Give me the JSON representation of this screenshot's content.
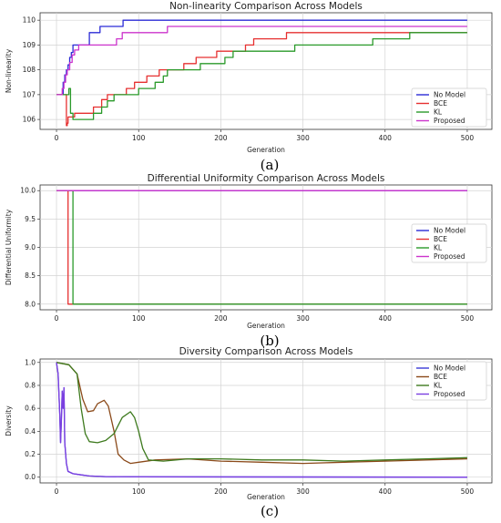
{
  "chart_data": [
    {
      "type": "line",
      "caption": "(a)",
      "title": "Non-linearity Comparison Across Models",
      "xlabel": "Generation",
      "ylabel": "Non-linearity",
      "xlim": [
        -20,
        530
      ],
      "ylim": [
        105.6,
        110.3
      ],
      "xticks": [
        0,
        100,
        200,
        300,
        400,
        500
      ],
      "yticks": [
        106,
        107,
        108,
        109,
        110
      ],
      "ytick_labels": [
        "106",
        "107",
        "108",
        "109",
        "110"
      ],
      "grid": true,
      "legend_position": "lower-right",
      "series": [
        {
          "name": "No Model",
          "color": "#2b2bd6",
          "step": true,
          "points": [
            [
              0,
              107
            ],
            [
              6,
              107
            ],
            [
              8,
              107.5
            ],
            [
              10,
              107.8
            ],
            [
              12,
              108
            ],
            [
              14,
              108.2
            ],
            [
              16,
              108.5
            ],
            [
              18,
              108.7
            ],
            [
              20,
              109
            ],
            [
              40,
              109.5
            ],
            [
              52,
              109.5
            ],
            [
              53,
              109.75
            ],
            [
              80,
              109.75
            ],
            [
              81,
              110
            ],
            [
              100,
              110
            ],
            [
              500,
              110
            ]
          ]
        },
        {
          "name": "BCE",
          "color": "#e63030",
          "step": true,
          "points": [
            [
              0,
              107
            ],
            [
              10,
              107
            ],
            [
              12,
              105.75
            ],
            [
              13,
              105.85
            ],
            [
              14,
              106.1
            ],
            [
              22,
              106.25
            ],
            [
              45,
              106.5
            ],
            [
              55,
              106.8
            ],
            [
              62,
              107
            ],
            [
              85,
              107.25
            ],
            [
              95,
              107.5
            ],
            [
              110,
              107.75
            ],
            [
              125,
              108
            ],
            [
              155,
              108.25
            ],
            [
              170,
              108.5
            ],
            [
              195,
              108.75
            ],
            [
              230,
              109
            ],
            [
              240,
              109.25
            ],
            [
              280,
              109.5
            ],
            [
              500,
              109.5
            ]
          ]
        },
        {
          "name": "KL",
          "color": "#2a9a2a",
          "step": true,
          "points": [
            [
              0,
              107
            ],
            [
              14,
              107
            ],
            [
              15,
              107.25
            ],
            [
              17,
              106.25
            ],
            [
              20,
              106
            ],
            [
              45,
              106.25
            ],
            [
              55,
              106.5
            ],
            [
              62,
              106.75
            ],
            [
              70,
              107
            ],
            [
              100,
              107.25
            ],
            [
              120,
              107.5
            ],
            [
              130,
              107.75
            ],
            [
              135,
              108
            ],
            [
              160,
              108
            ],
            [
              175,
              108.25
            ],
            [
              205,
              108.5
            ],
            [
              215,
              108.75
            ],
            [
              290,
              109
            ],
            [
              385,
              109.25
            ],
            [
              430,
              109.5
            ],
            [
              500,
              109.5
            ]
          ]
        },
        {
          "name": "Proposed",
          "color": "#cc33cc",
          "step": true,
          "points": [
            [
              0,
              107
            ],
            [
              5,
              107
            ],
            [
              7,
              107.25
            ],
            [
              9,
              107.5
            ],
            [
              11,
              107.8
            ],
            [
              13,
              108
            ],
            [
              16,
              108.3
            ],
            [
              19,
              108.6
            ],
            [
              22,
              108.8
            ],
            [
              27,
              109
            ],
            [
              70,
              109
            ],
            [
              73,
              109.25
            ],
            [
              80,
              109.5
            ],
            [
              135,
              109.75
            ],
            [
              500,
              109.75
            ]
          ]
        }
      ]
    },
    {
      "type": "line",
      "caption": "(b)",
      "title": "Differential Uniformity Comparison Across Models",
      "xlabel": "Generation",
      "ylabel": "Differential Uniformity",
      "xlim": [
        -20,
        530
      ],
      "ylim": [
        7.9,
        10.1
      ],
      "xticks": [
        0,
        100,
        200,
        300,
        400,
        500
      ],
      "yticks": [
        8.0,
        8.5,
        9.0,
        9.5,
        10.0
      ],
      "ytick_labels": [
        "8.0",
        "8.5",
        "9.0",
        "9.5",
        "10.0"
      ],
      "grid": true,
      "legend_position": "center-right",
      "series": [
        {
          "name": "No Model",
          "color": "#2b2bd6",
          "step": true,
          "points": [
            [
              0,
              10
            ],
            [
              500,
              10
            ]
          ]
        },
        {
          "name": "BCE",
          "color": "#e63030",
          "step": true,
          "points": [
            [
              0,
              10
            ],
            [
              13,
              10
            ],
            [
              14,
              8
            ],
            [
              500,
              8
            ]
          ]
        },
        {
          "name": "KL",
          "color": "#2a9a2a",
          "step": true,
          "points": [
            [
              0,
              10
            ],
            [
              19,
              10
            ],
            [
              20,
              8
            ],
            [
              500,
              8
            ]
          ]
        },
        {
          "name": "Proposed",
          "color": "#cc33cc",
          "step": true,
          "points": [
            [
              0,
              10
            ],
            [
              500,
              10
            ]
          ]
        }
      ]
    },
    {
      "type": "line",
      "caption": "(c)",
      "title": "Diversity Comparison Across Models",
      "xlabel": "Generation",
      "ylabel": "Diversity",
      "xlim": [
        -20,
        530
      ],
      "ylim": [
        -0.05,
        1.03
      ],
      "xticks": [
        0,
        100,
        200,
        300,
        400,
        500
      ],
      "yticks": [
        0.0,
        0.2,
        0.4,
        0.6,
        0.8,
        1.0
      ],
      "ytick_labels": [
        "0.0",
        "0.2",
        "0.4",
        "0.6",
        "0.8",
        "1.0"
      ],
      "grid": true,
      "legend_position": "top-right",
      "series": [
        {
          "name": "No Model",
          "color": "#3a3ad6",
          "step": false,
          "points": [
            [
              0,
              1
            ],
            [
              2,
              0.9
            ],
            [
              4,
              0.55
            ],
            [
              5,
              0.3
            ],
            [
              6,
              0.5
            ],
            [
              7,
              0.75
            ],
            [
              8,
              0.6
            ],
            [
              9,
              0.78
            ],
            [
              10,
              0.3
            ],
            [
              12,
              0.12
            ],
            [
              14,
              0.05
            ],
            [
              20,
              0.03
            ],
            [
              30,
              0.02
            ],
            [
              40,
              0.01
            ],
            [
              60,
              0.005
            ],
            [
              100,
              0.003
            ],
            [
              500,
              0.0
            ]
          ]
        },
        {
          "name": "BCE",
          "color": "#8b4a1a",
          "step": false,
          "points": [
            [
              0,
              1
            ],
            [
              15,
              0.98
            ],
            [
              25,
              0.9
            ],
            [
              32,
              0.68
            ],
            [
              38,
              0.57
            ],
            [
              45,
              0.58
            ],
            [
              50,
              0.64
            ],
            [
              58,
              0.67
            ],
            [
              63,
              0.62
            ],
            [
              70,
              0.4
            ],
            [
              75,
              0.2
            ],
            [
              82,
              0.15
            ],
            [
              90,
              0.12
            ],
            [
              100,
              0.13
            ],
            [
              120,
              0.15
            ],
            [
              160,
              0.16
            ],
            [
              200,
              0.14
            ],
            [
              250,
              0.13
            ],
            [
              300,
              0.12
            ],
            [
              350,
              0.13
            ],
            [
              400,
              0.14
            ],
            [
              450,
              0.15
            ],
            [
              500,
              0.16
            ]
          ]
        },
        {
          "name": "KL",
          "color": "#3e7a1e",
          "step": false,
          "points": [
            [
              0,
              1
            ],
            [
              15,
              0.98
            ],
            [
              25,
              0.9
            ],
            [
              30,
              0.6
            ],
            [
              35,
              0.38
            ],
            [
              40,
              0.31
            ],
            [
              50,
              0.3
            ],
            [
              60,
              0.32
            ],
            [
              70,
              0.38
            ],
            [
              80,
              0.52
            ],
            [
              90,
              0.57
            ],
            [
              95,
              0.52
            ],
            [
              100,
              0.4
            ],
            [
              105,
              0.25
            ],
            [
              112,
              0.15
            ],
            [
              130,
              0.14
            ],
            [
              160,
              0.16
            ],
            [
              200,
              0.16
            ],
            [
              250,
              0.15
            ],
            [
              300,
              0.15
            ],
            [
              350,
              0.14
            ],
            [
              400,
              0.15
            ],
            [
              450,
              0.16
            ],
            [
              500,
              0.17
            ]
          ]
        },
        {
          "name": "Proposed",
          "color": "#7b3fe0",
          "step": false,
          "points": [
            [
              0,
              1
            ],
            [
              2,
              0.9
            ],
            [
              4,
              0.55
            ],
            [
              5,
              0.3
            ],
            [
              6,
              0.5
            ],
            [
              7,
              0.75
            ],
            [
              8,
              0.6
            ],
            [
              9,
              0.78
            ],
            [
              10,
              0.3
            ],
            [
              12,
              0.12
            ],
            [
              14,
              0.05
            ],
            [
              20,
              0.03
            ],
            [
              30,
              0.02
            ],
            [
              40,
              0.01
            ],
            [
              60,
              0.005
            ],
            [
              100,
              0.003
            ],
            [
              500,
              0.0
            ]
          ]
        }
      ]
    }
  ]
}
